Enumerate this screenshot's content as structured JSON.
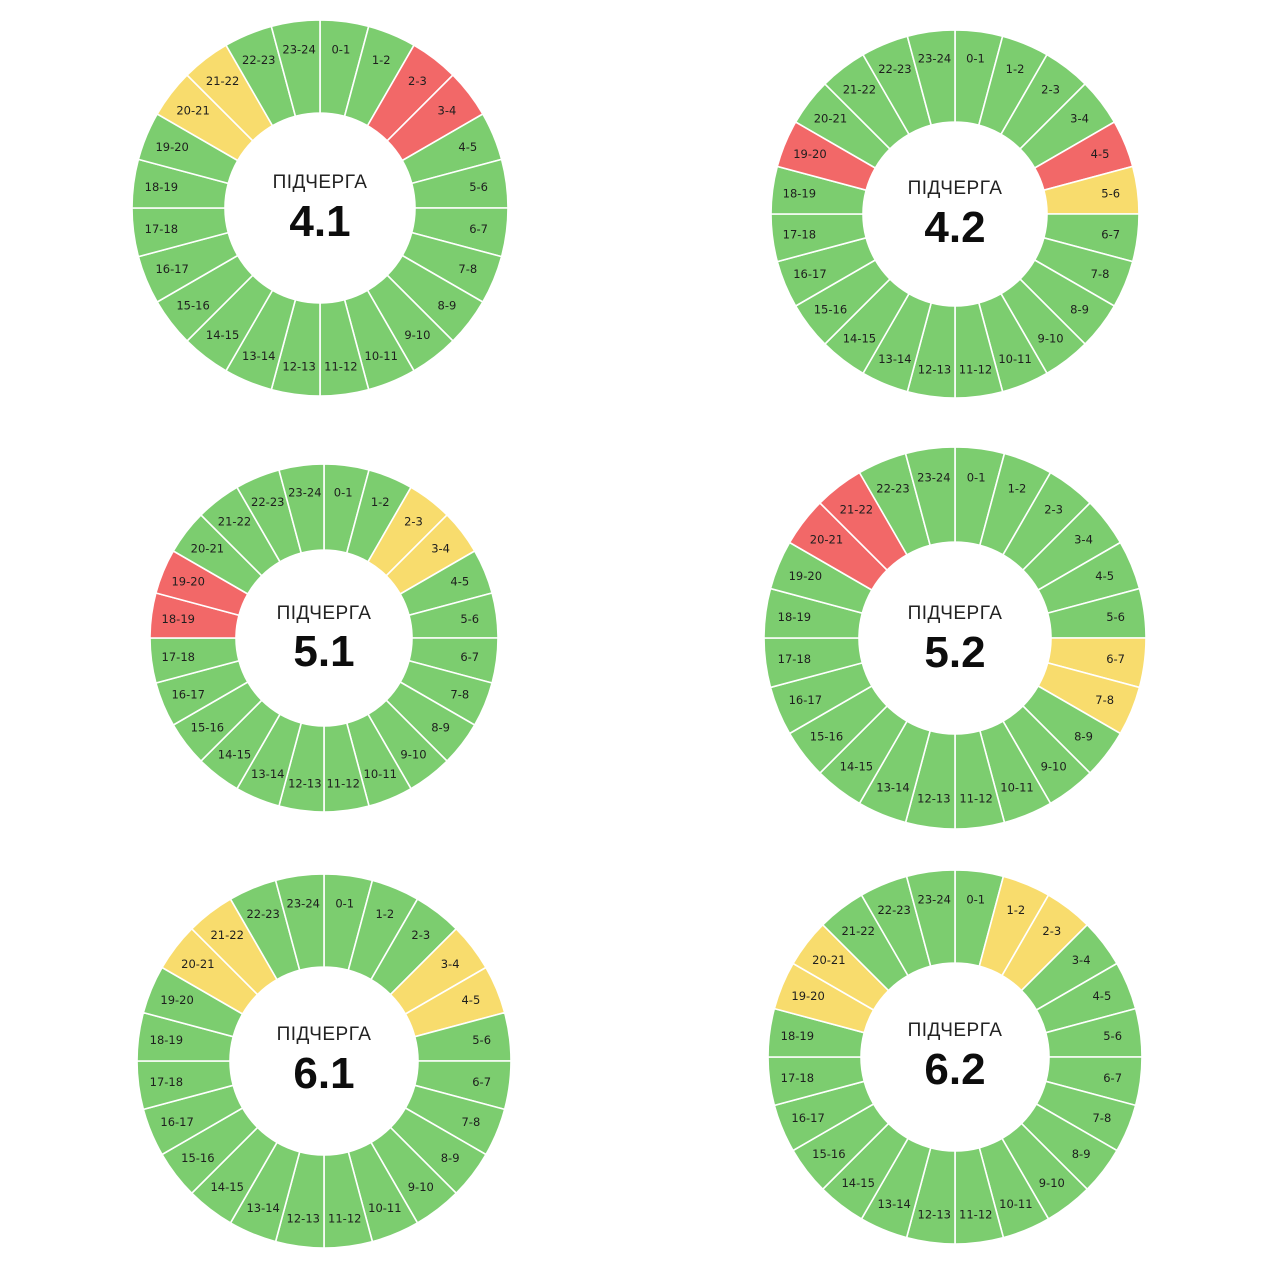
{
  "colors": {
    "on": "#7ccd6f",
    "possible": "#f8dc6d",
    "off": "#f26868",
    "divider": "#ffffff",
    "center": "#ffffff"
  },
  "hour_labels": [
    "0-1",
    "1-2",
    "2-3",
    "3-4",
    "4-5",
    "5-6",
    "6-7",
    "7-8",
    "8-9",
    "9-10",
    "10-11",
    "11-12",
    "12-13",
    "13-14",
    "14-15",
    "15-16",
    "16-17",
    "17-18",
    "18-19",
    "19-20",
    "20-21",
    "21-22",
    "22-23",
    "23-24"
  ],
  "chart_data": [
    {
      "type": "pie",
      "caption": "ПІДЧЕРГА",
      "name": "4.1",
      "status": [
        "on",
        "on",
        "off",
        "off",
        "on",
        "on",
        "on",
        "on",
        "on",
        "on",
        "on",
        "on",
        "on",
        "on",
        "on",
        "on",
        "on",
        "on",
        "on",
        "on",
        "possible",
        "possible",
        "on",
        "on"
      ]
    },
    {
      "type": "pie",
      "caption": "ПІДЧЕРГА",
      "name": "4.2",
      "status": [
        "on",
        "on",
        "on",
        "on",
        "off",
        "possible",
        "on",
        "on",
        "on",
        "on",
        "on",
        "on",
        "on",
        "on",
        "on",
        "on",
        "on",
        "on",
        "on",
        "off",
        "on",
        "on",
        "on",
        "on"
      ]
    },
    {
      "type": "pie",
      "caption": "ПІДЧЕРГА",
      "name": "5.1",
      "status": [
        "on",
        "on",
        "possible",
        "possible",
        "on",
        "on",
        "on",
        "on",
        "on",
        "on",
        "on",
        "on",
        "on",
        "on",
        "on",
        "on",
        "on",
        "on",
        "off",
        "off",
        "on",
        "on",
        "on",
        "on"
      ]
    },
    {
      "type": "pie",
      "caption": "ПІДЧЕРГА",
      "name": "5.2",
      "status": [
        "on",
        "on",
        "on",
        "on",
        "on",
        "on",
        "possible",
        "possible",
        "on",
        "on",
        "on",
        "on",
        "on",
        "on",
        "on",
        "on",
        "on",
        "on",
        "on",
        "on",
        "off",
        "off",
        "on",
        "on"
      ]
    },
    {
      "type": "pie",
      "caption": "ПІДЧЕРГА",
      "name": "6.1",
      "status": [
        "on",
        "on",
        "on",
        "possible",
        "possible",
        "on",
        "on",
        "on",
        "on",
        "on",
        "on",
        "on",
        "on",
        "on",
        "on",
        "on",
        "on",
        "on",
        "on",
        "on",
        "possible",
        "possible",
        "on",
        "on"
      ]
    },
    {
      "type": "pie",
      "caption": "ПІДЧЕРГА",
      "name": "6.2",
      "status": [
        "on",
        "possible",
        "possible",
        "on",
        "on",
        "on",
        "on",
        "on",
        "on",
        "on",
        "on",
        "on",
        "on",
        "on",
        "on",
        "on",
        "on",
        "on",
        "on",
        "possible",
        "possible",
        "on",
        "on",
        "on"
      ]
    }
  ]
}
